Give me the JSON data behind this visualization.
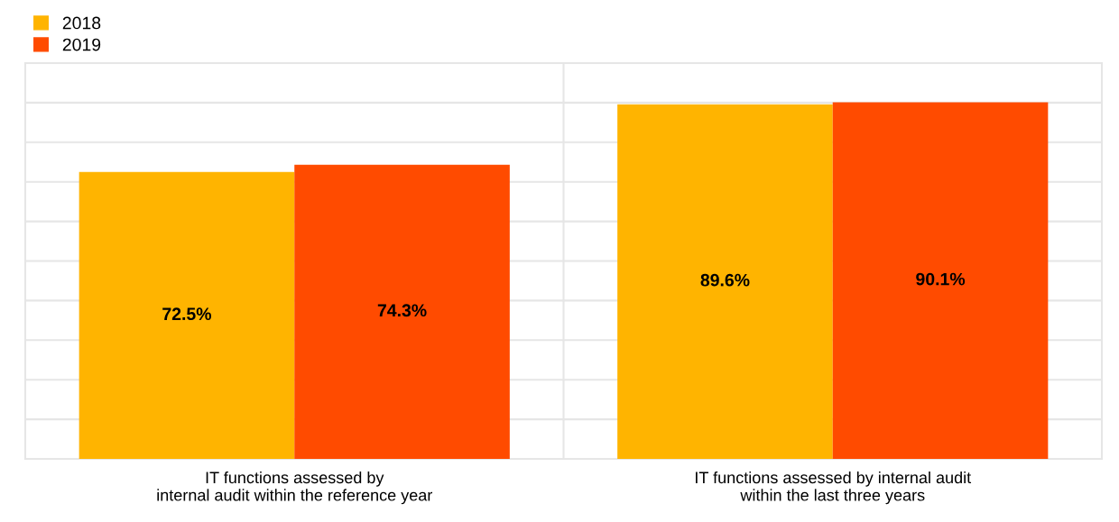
{
  "chart_data": {
    "type": "bar",
    "categories": [
      "IT functions assessed by\ninternal audit within the reference year",
      "IT functions assessed by internal audit\nwithin the last three years"
    ],
    "series": [
      {
        "name": "2018",
        "color": "#ffb400",
        "values": [
          72.5,
          89.6
        ],
        "value_labels": [
          "72.5%",
          "89.6%"
        ]
      },
      {
        "name": "2019",
        "color": "#ff4b00",
        "values": [
          74.3,
          90.1
        ],
        "value_labels": [
          "74.3%",
          "90.1%"
        ]
      }
    ],
    "ylim": [
      0,
      100
    ],
    "yticks": [
      {
        "value": 0,
        "label": null
      },
      {
        "value": 10,
        "label": null
      },
      {
        "value": 20,
        "label": null
      },
      {
        "value": 30,
        "label": null
      },
      {
        "value": 40,
        "label": null
      },
      {
        "value": 50,
        "label": null
      },
      {
        "value": 60,
        "label": null
      },
      {
        "value": 70,
        "label": null
      },
      {
        "value": 80,
        "label": null
      },
      {
        "value": 90,
        "label": null
      },
      {
        "value": 100,
        "label": null
      }
    ],
    "grid": true,
    "legend": "top left",
    "tick_labels": "x"
  }
}
